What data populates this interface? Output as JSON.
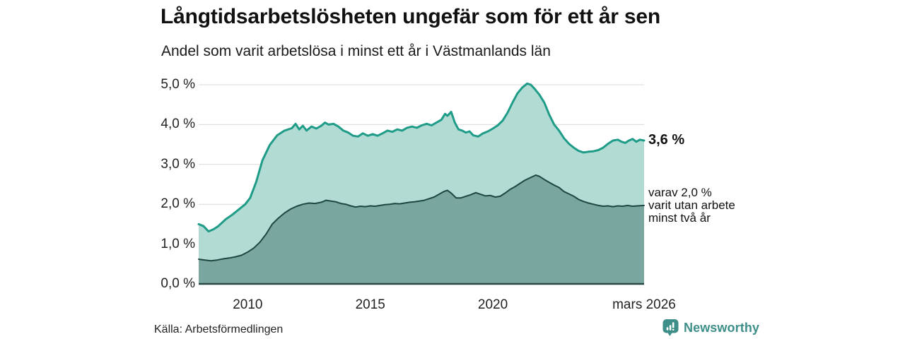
{
  "title": "Långtidsarbetslösheten ungefär som för ett år sen",
  "subtitle": "Andel som varit arbetslösa i minst ett år i Västmanlands län",
  "source": "Källa: Arbetsförmedlingen",
  "branding": {
    "name": "Newsworthy",
    "icon": "newsworthy-chart-bubble-icon",
    "color": "#3e8e89"
  },
  "annotations": {
    "end_value": "3,6 %",
    "secondary_line1": "varav 2,0 %",
    "secondary_line2": "varit utan arbete",
    "secondary_line3": "minst två år"
  },
  "colors": {
    "series1_line": "#1e9c87",
    "series1_fill": "#b2dbd4",
    "series2_line": "#1e4742",
    "series2_fill": "#7aa6a0",
    "gridline": "#d9d9d9",
    "axis": "#2b4a45"
  },
  "chart_data": {
    "type": "area",
    "title": "Långtidsarbetslösheten ungefär som för ett år sen",
    "subtitle": "Andel som varit arbetslösa i minst ett år i Västmanlands län",
    "xlabel": "",
    "ylabel": "",
    "xlim": [
      2008,
      2026.25
    ],
    "ylim": [
      0,
      5.3
    ],
    "grid": true,
    "legend_position": "right-annotations",
    "y_ticks": [
      {
        "label": "0,0 %",
        "value": 0
      },
      {
        "label": "1,0 %",
        "value": 1
      },
      {
        "label": "2,0 %",
        "value": 2
      },
      {
        "label": "3,0 %",
        "value": 3
      },
      {
        "label": "4,0 %",
        "value": 4
      },
      {
        "label": "5,0 %",
        "value": 5
      }
    ],
    "x_ticks": [
      {
        "label": "2010",
        "year": 2010
      },
      {
        "label": "2015",
        "year": 2015
      },
      {
        "label": "2020",
        "year": 2020
      },
      {
        "label": "mars 2026",
        "year": 2026.17
      }
    ],
    "series": [
      {
        "label": "Andel som varit arbetslösa i minst ett år",
        "end_label": "3,6 %",
        "end_value": 3.6,
        "line_color": "#1e9c87",
        "fill_color": "#b2dbd4",
        "line_width": 3,
        "x": [
          2008.0,
          2008.2,
          2008.4,
          2008.6,
          2008.8,
          2009.1,
          2009.4,
          2009.7,
          2009.9,
          2010.1,
          2010.35,
          2010.6,
          2010.9,
          2011.2,
          2011.5,
          2011.8,
          2011.95,
          2012.1,
          2012.25,
          2012.4,
          2012.6,
          2012.8,
          2013.0,
          2013.15,
          2013.3,
          2013.5,
          2013.7,
          2013.9,
          2014.1,
          2014.3,
          2014.5,
          2014.7,
          2014.9,
          2015.1,
          2015.3,
          2015.5,
          2015.7,
          2015.9,
          2016.1,
          2016.3,
          2016.5,
          2016.7,
          2016.9,
          2017.1,
          2017.3,
          2017.5,
          2017.7,
          2017.9,
          2018.05,
          2018.15,
          2018.3,
          2018.45,
          2018.6,
          2018.75,
          2018.9,
          2019.05,
          2019.2,
          2019.4,
          2019.6,
          2019.8,
          2020.0,
          2020.2,
          2020.4,
          2020.6,
          2020.8,
          2021.0,
          2021.2,
          2021.4,
          2021.55,
          2021.7,
          2021.9,
          2022.1,
          2022.3,
          2022.5,
          2022.7,
          2022.9,
          2023.1,
          2023.3,
          2023.5,
          2023.7,
          2023.9,
          2024.1,
          2024.3,
          2024.5,
          2024.7,
          2024.9,
          2025.1,
          2025.25,
          2025.4,
          2025.55,
          2025.7,
          2025.85,
          2026.0,
          2026.17
        ],
        "values": [
          1.5,
          1.45,
          1.32,
          1.37,
          1.45,
          1.62,
          1.75,
          1.9,
          2.0,
          2.16,
          2.57,
          3.1,
          3.49,
          3.73,
          3.85,
          3.91,
          4.02,
          3.88,
          3.97,
          3.85,
          3.95,
          3.9,
          3.97,
          4.05,
          4.0,
          4.02,
          3.95,
          3.85,
          3.8,
          3.72,
          3.7,
          3.78,
          3.72,
          3.76,
          3.72,
          3.78,
          3.85,
          3.82,
          3.88,
          3.85,
          3.92,
          3.95,
          3.92,
          3.98,
          4.02,
          3.98,
          4.05,
          4.12,
          4.27,
          4.22,
          4.32,
          4.05,
          3.88,
          3.85,
          3.8,
          3.83,
          3.73,
          3.7,
          3.78,
          3.83,
          3.9,
          3.98,
          4.1,
          4.3,
          4.55,
          4.78,
          4.93,
          5.03,
          5.0,
          4.9,
          4.75,
          4.55,
          4.25,
          4.0,
          3.85,
          3.66,
          3.52,
          3.42,
          3.34,
          3.3,
          3.32,
          3.33,
          3.36,
          3.42,
          3.52,
          3.6,
          3.62,
          3.57,
          3.54,
          3.6,
          3.64,
          3.57,
          3.62,
          3.6
        ]
      },
      {
        "label": "varav varit utan arbete minst två år",
        "end_label": "varav 2,0 % varit utan arbete minst två år",
        "end_value": 2.0,
        "line_color": "#1e4742",
        "fill_color": "#7aa6a0",
        "line_width": 2,
        "x": [
          2008.0,
          2008.25,
          2008.5,
          2008.75,
          2009.0,
          2009.25,
          2009.5,
          2009.75,
          2010.0,
          2010.25,
          2010.5,
          2010.75,
          2011.0,
          2011.25,
          2011.5,
          2011.75,
          2012.0,
          2012.25,
          2012.5,
          2012.75,
          2013.0,
          2013.2,
          2013.4,
          2013.6,
          2013.8,
          2014.0,
          2014.2,
          2014.4,
          2014.6,
          2014.8,
          2015.0,
          2015.2,
          2015.4,
          2015.6,
          2015.8,
          2016.0,
          2016.2,
          2016.4,
          2016.6,
          2016.8,
          2017.0,
          2017.2,
          2017.4,
          2017.6,
          2017.8,
          2018.0,
          2018.15,
          2018.3,
          2018.5,
          2018.7,
          2018.9,
          2019.1,
          2019.3,
          2019.5,
          2019.7,
          2019.9,
          2020.1,
          2020.3,
          2020.5,
          2020.7,
          2020.9,
          2021.1,
          2021.3,
          2021.5,
          2021.75,
          2021.9,
          2022.1,
          2022.3,
          2022.5,
          2022.7,
          2022.9,
          2023.1,
          2023.3,
          2023.5,
          2023.7,
          2023.9,
          2024.1,
          2024.3,
          2024.5,
          2024.7,
          2024.9,
          2025.1,
          2025.3,
          2025.5,
          2025.7,
          2025.9,
          2026.17
        ],
        "values": [
          0.62,
          0.6,
          0.58,
          0.6,
          0.63,
          0.65,
          0.68,
          0.72,
          0.8,
          0.9,
          1.05,
          1.25,
          1.5,
          1.65,
          1.78,
          1.88,
          1.95,
          2.0,
          2.03,
          2.02,
          2.05,
          2.1,
          2.08,
          2.06,
          2.02,
          2.0,
          1.96,
          1.93,
          1.95,
          1.94,
          1.96,
          1.95,
          1.97,
          1.99,
          2.0,
          2.02,
          2.01,
          2.03,
          2.05,
          2.06,
          2.08,
          2.1,
          2.14,
          2.18,
          2.25,
          2.32,
          2.35,
          2.28,
          2.16,
          2.16,
          2.2,
          2.24,
          2.29,
          2.25,
          2.21,
          2.22,
          2.18,
          2.2,
          2.28,
          2.37,
          2.44,
          2.52,
          2.6,
          2.66,
          2.73,
          2.7,
          2.62,
          2.55,
          2.48,
          2.42,
          2.32,
          2.26,
          2.2,
          2.12,
          2.07,
          2.03,
          2.0,
          1.97,
          1.95,
          1.96,
          1.94,
          1.96,
          1.95,
          1.97,
          1.95,
          1.96,
          1.97
        ]
      }
    ]
  }
}
